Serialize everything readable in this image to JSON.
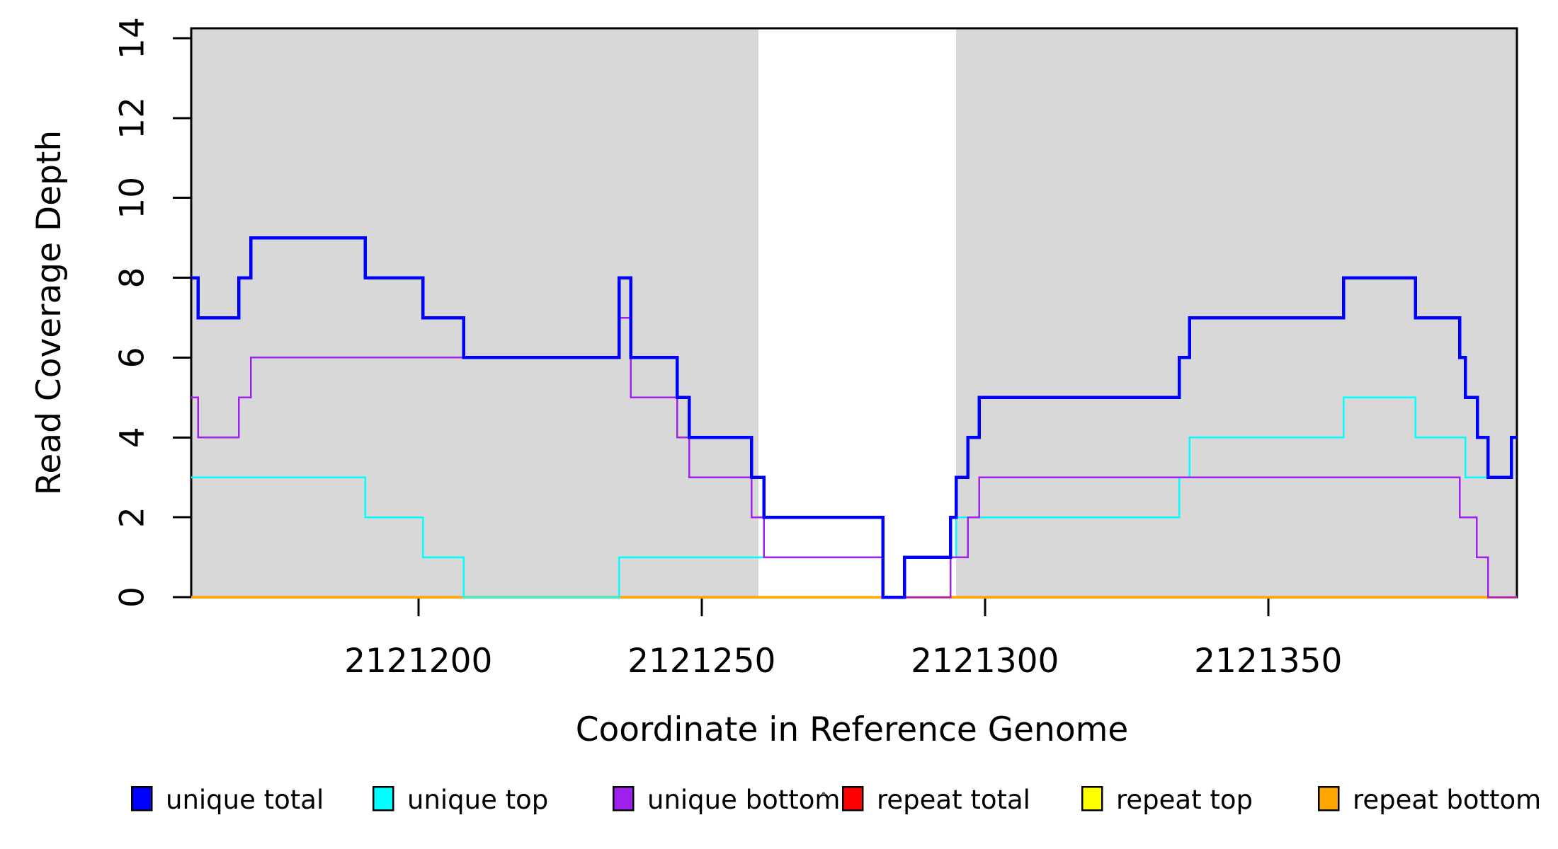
{
  "chart_data": {
    "type": "line",
    "subtype": "step",
    "title": "",
    "xlabel": "Coordinate in Reference Genome",
    "ylabel": "Read Coverage Depth",
    "xlim": [
      2121159.9,
      2121393.9
    ],
    "ylim": [
      0,
      14
    ],
    "x_ticks": [
      2121200,
      2121250,
      2121300,
      2121350
    ],
    "y_ticks": [
      0,
      2,
      4,
      6,
      8,
      10,
      12,
      14
    ],
    "grid": false,
    "background_color": "#FFFFFF",
    "shaded_band_color": "#D8D8D8",
    "shaded_regions": [
      {
        "name": "left-gray-band",
        "from": 2121159.9,
        "to": 2121260.0
      },
      {
        "name": "right-gray-band",
        "from": 2121294.9,
        "to": 2121393.9
      }
    ],
    "series": [
      {
        "name": "unique total",
        "color": "#0000FF",
        "line_width": 4.5,
        "end": 2121393.9,
        "steps": [
          [
            2121159.9,
            8
          ],
          [
            2121161.1,
            7
          ],
          [
            2121168.3,
            8
          ],
          [
            2121170.4,
            9
          ],
          [
            2121190.6,
            8
          ],
          [
            2121200.8,
            7
          ],
          [
            2121208.0,
            6
          ],
          [
            2121235.4,
            8
          ],
          [
            2121237.5,
            6
          ],
          [
            2121245.7,
            5
          ],
          [
            2121247.8,
            4
          ],
          [
            2121258.8,
            3
          ],
          [
            2121261.0,
            2
          ],
          [
            2121282.0,
            0
          ],
          [
            2121285.8,
            1
          ],
          [
            2121293.9,
            2
          ],
          [
            2121294.9,
            3
          ],
          [
            2121297.0,
            4
          ],
          [
            2121299.0,
            5
          ],
          [
            2121334.3,
            6
          ],
          [
            2121336.1,
            7
          ],
          [
            2121363.3,
            8
          ],
          [
            2121376.0,
            7
          ],
          [
            2121383.8,
            6
          ],
          [
            2121384.8,
            5
          ],
          [
            2121386.9,
            4
          ],
          [
            2121388.8,
            3
          ],
          [
            2121392.9,
            4
          ]
        ]
      },
      {
        "name": "unique top",
        "color": "#00FFFF",
        "line_width": 2.5,
        "end": 2121393.9,
        "steps": [
          [
            2121159.9,
            3
          ],
          [
            2121190.6,
            2
          ],
          [
            2121200.8,
            1
          ],
          [
            2121208.0,
            0
          ],
          [
            2121235.4,
            1
          ],
          [
            2121282.0,
            0
          ],
          [
            2121285.8,
            1
          ],
          [
            2121294.9,
            2
          ],
          [
            2121334.3,
            3
          ],
          [
            2121336.1,
            4
          ],
          [
            2121363.3,
            5
          ],
          [
            2121376.0,
            4
          ],
          [
            2121384.8,
            3
          ],
          [
            2121392.9,
            4
          ]
        ]
      },
      {
        "name": "unique bottom",
        "color": "#A020F0",
        "line_width": 2.5,
        "end": 2121393.9,
        "steps": [
          [
            2121159.9,
            5
          ],
          [
            2121161.1,
            4
          ],
          [
            2121168.3,
            5
          ],
          [
            2121170.4,
            6
          ],
          [
            2121235.4,
            7
          ],
          [
            2121237.5,
            5
          ],
          [
            2121245.7,
            4
          ],
          [
            2121247.8,
            3
          ],
          [
            2121258.8,
            2
          ],
          [
            2121261.0,
            1
          ],
          [
            2121282.0,
            0
          ],
          [
            2121293.9,
            1
          ],
          [
            2121297.0,
            2
          ],
          [
            2121299.0,
            3
          ],
          [
            2121383.8,
            2
          ],
          [
            2121386.8,
            1
          ],
          [
            2121388.8,
            0
          ]
        ]
      },
      {
        "name": "repeat total",
        "color": "#FF0000",
        "line_width": 3,
        "end": 2121393.9,
        "steps": [
          [
            2121159.9,
            0
          ]
        ]
      },
      {
        "name": "repeat top",
        "color": "#FFFF00",
        "line_width": 3,
        "end": 2121393.9,
        "steps": [
          [
            2121159.9,
            0
          ]
        ]
      },
      {
        "name": "repeat bottom",
        "color": "#FFA500",
        "line_width": 3.5,
        "end": 2121393.9,
        "steps": [
          [
            2121159.9,
            0
          ]
        ]
      }
    ],
    "draw_order": [
      "repeat total",
      "repeat top",
      "repeat bottom",
      "unique top",
      "unique bottom",
      "unique total"
    ],
    "legend": {
      "position": "bottom",
      "items": [
        {
          "label": "unique total",
          "color": "#0000FF"
        },
        {
          "label": "unique top",
          "color": "#00FFFF"
        },
        {
          "label": "unique bottom",
          "color": "#A020F0"
        },
        {
          "label": "repeat total",
          "color": "#FF0000"
        },
        {
          "label": "repeat top",
          "color": "#FFFF00"
        },
        {
          "label": "repeat bottom",
          "color": "#FFA500"
        }
      ]
    }
  }
}
